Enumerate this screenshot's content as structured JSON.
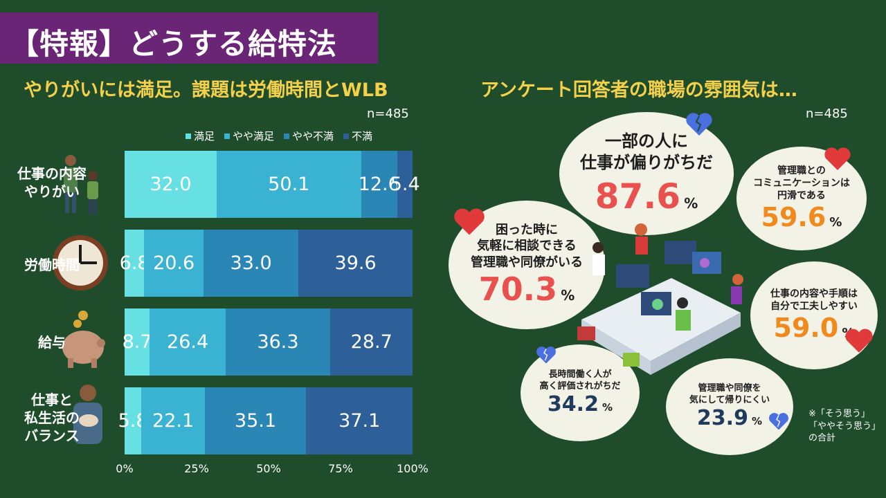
{
  "header": {
    "title": "【特報】どうする給特法"
  },
  "left": {
    "subtitle": "やりがいには満足。課題は労働時間とWLB",
    "n": "n=485"
  },
  "right": {
    "subtitle": "アンケート回答者の職場の雰囲気は…",
    "n": "n=485",
    "bubbles": [
      {
        "text": [
          "一部の人に",
          "仕事が偏りがちだ"
        ],
        "value": "87.6",
        "unit": "%"
      },
      {
        "text": [
          "管理職との",
          "コミュニケーションは",
          "円滑である"
        ],
        "value": "59.6",
        "unit": "%"
      },
      {
        "text": [
          "困った時に",
          "気軽に相談できる",
          "管理職や同僚がいる"
        ],
        "value": "70.3",
        "unit": "%"
      },
      {
        "text": [
          "仕事の内容や手順は",
          "自分で工夫しやすい"
        ],
        "value": "59.0",
        "unit": "%"
      },
      {
        "text": [
          "長時間働く人が",
          "高く評価されがちだ"
        ],
        "value": "34.2",
        "unit": "%"
      },
      {
        "text": [
          "管理職や同僚を",
          "気にして帰りにくい"
        ],
        "value": "23.9",
        "unit": "%"
      }
    ],
    "note": [
      "※「そう思う」",
      "「ややそう思う」",
      "の合計"
    ]
  },
  "chart_data": {
    "type": "bar",
    "orientation": "horizontal",
    "stacked": true,
    "normalized": true,
    "categories": [
      "仕事の内容やりがい",
      "労働時間",
      "給与",
      "仕事と私生活のバランス"
    ],
    "category_lines": [
      [
        "仕事の内容",
        "やりがい"
      ],
      [
        "労働時間"
      ],
      [
        "給与"
      ],
      [
        "仕事と",
        "私生活の",
        "バランス"
      ]
    ],
    "series": [
      {
        "name": "満足",
        "values": [
          32.0,
          6.8,
          8.7,
          5.8
        ],
        "labels": [
          "32.0",
          "6.8",
          "8.7",
          "5.8"
        ],
        "color": "#67e0e4"
      },
      {
        "name": "やや満足",
        "values": [
          50.1,
          20.6,
          26.4,
          22.1
        ],
        "labels": [
          "50.1",
          "20.6",
          "26.4",
          "22.1"
        ],
        "color": "#3ab2d2"
      },
      {
        "name": "やや不満",
        "values": [
          12.6,
          33.0,
          36.3,
          35.1
        ],
        "labels": [
          "12.6",
          "33.0",
          "36.3",
          "35.1"
        ],
        "color": "#2a87b5"
      },
      {
        "name": "不満",
        "values": [
          5.4,
          39.6,
          28.7,
          37.1
        ],
        "labels": [
          "5.4",
          "39.6",
          "28.7",
          "37.1"
        ],
        "color": "#2d5f99"
      }
    ],
    "xlim": [
      0,
      100
    ],
    "ticks": [
      "0%",
      "25%",
      "50%",
      "75%",
      "100%"
    ],
    "legend": "top-right"
  },
  "colors": {
    "heart_red": "#e03a3a",
    "heart_broken_blue": "#4a6fe0",
    "pct_red": "#e8514d",
    "pct_orange": "#f08a1c",
    "pct_navy": "#1f3a5c"
  }
}
